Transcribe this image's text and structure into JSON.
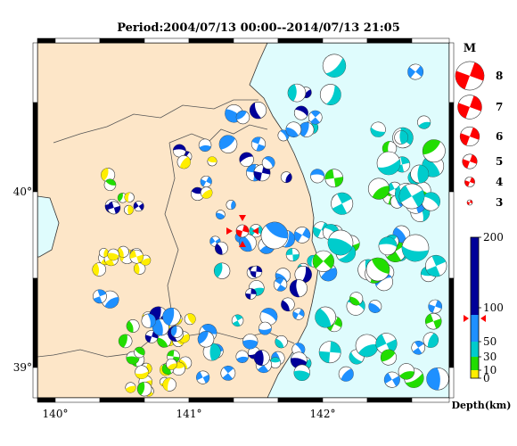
{
  "title": "Period:2004/07/13 00:00--2014/07/13 21:05",
  "map": {
    "lon_ticks": [
      "140°",
      "141°",
      "142°"
    ],
    "lat_ticks": [
      "40°",
      "39°"
    ]
  },
  "magnitude_legend": {
    "title": "M",
    "items": [
      {
        "label": "8",
        "mag": 8
      },
      {
        "label": "7",
        "mag": 7
      },
      {
        "label": "6",
        "mag": 6
      },
      {
        "label": "5",
        "mag": 5
      },
      {
        "label": "4",
        "mag": 4
      },
      {
        "label": "3",
        "mag": 3
      }
    ]
  },
  "depth_scale": {
    "title": "Depth(km)",
    "labels": [
      "200",
      "100",
      "50",
      "30",
      "10",
      "0"
    ],
    "colors": {
      "deep": "#000099",
      "mid": "#1e90ff",
      "shallow_mid": "#00cccc",
      "shallow": "#22dd00",
      "surface": "#ffee00"
    }
  },
  "colors": {
    "land": "#fde6c8",
    "sea": "#dffcfd",
    "highlight": "#ff0000"
  },
  "chart_data": {
    "type": "map",
    "x_range_deg": [
      139.9,
      142.9
    ],
    "y_range_deg": [
      38.85,
      40.5
    ],
    "highlighted_event": {
      "lon": 141.38,
      "lat": 39.76,
      "note": "latest event marked in red"
    }
  }
}
